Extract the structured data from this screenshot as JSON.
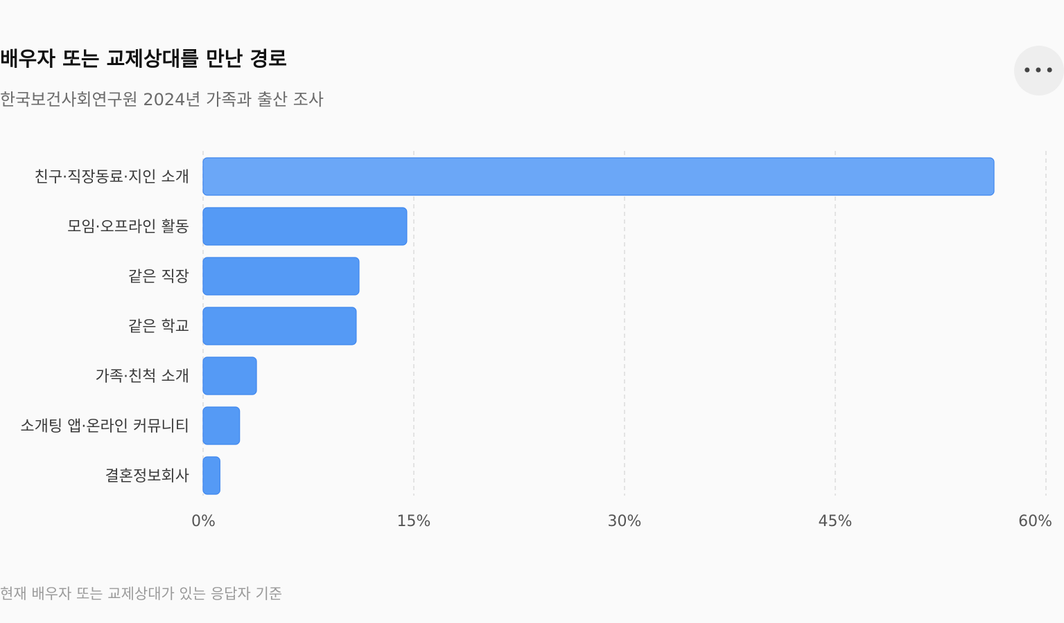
{
  "header": {
    "title": "배우자 또는 교제상대를 만난 경로",
    "subtitle": "한국보건사회연구원 2024년 가족과 출산 조사",
    "more_icon": "more-horizontal-icon"
  },
  "footnote": "현재 배우자 또는 교제상대가 있는 응답자 기준",
  "colors": {
    "bar_highlight": "#6ba7f7",
    "bar": "#559af5",
    "bar_stroke": "#3f86ee",
    "grid": "#e3e3e3"
  },
  "chart_data": {
    "type": "bar",
    "orientation": "horizontal",
    "categories": [
      "친구·직장동료·지인 소개",
      "모임·오프라인 활동",
      "같은 직장",
      "같은 학교",
      "가족·친척 소개",
      "소개팅 앱·온라인 커뮤니티",
      "결혼정보회사"
    ],
    "values": [
      56.3,
      14.5,
      11.1,
      10.9,
      3.8,
      2.6,
      1.2
    ],
    "xlim": [
      0,
      60
    ],
    "xticks": [
      0,
      15,
      30,
      45,
      60
    ],
    "tick_labels": [
      "0%",
      "15%",
      "30%",
      "45%",
      "60%"
    ],
    "grid": "vertical-dashed",
    "highlight_index": 0
  }
}
